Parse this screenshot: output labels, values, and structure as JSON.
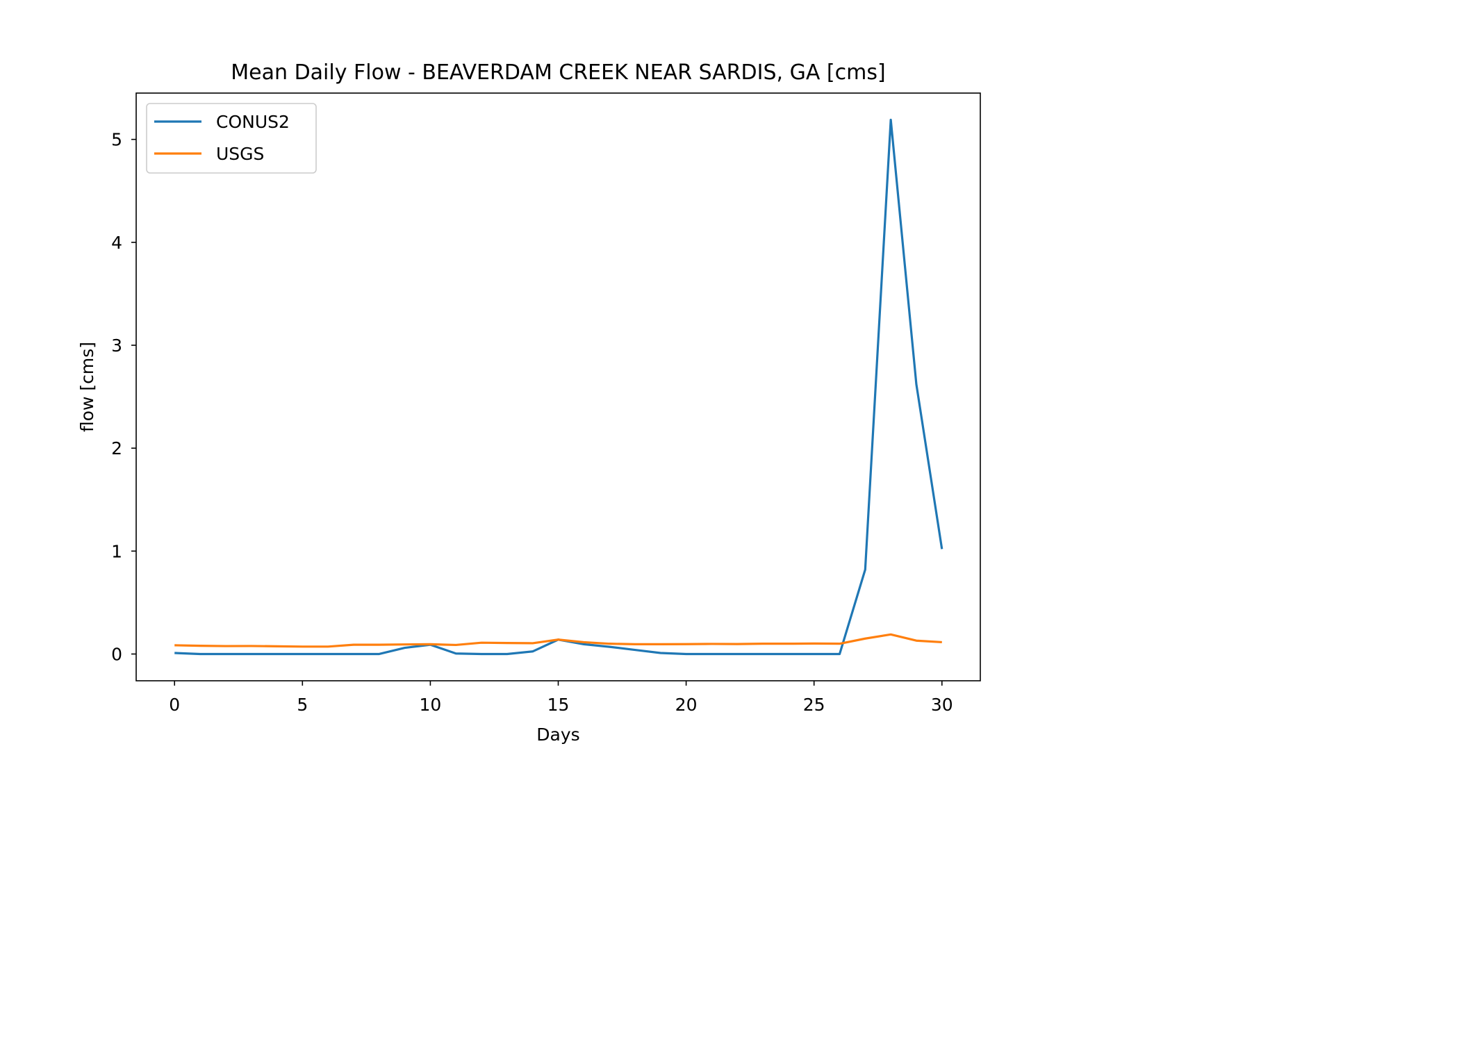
{
  "chart_data": {
    "type": "line",
    "title": "Mean Daily Flow - BEAVERDAM CREEK NEAR SARDIS, GA [cms]",
    "xlabel": "Days",
    "ylabel": "flow [cms]",
    "xlim": [
      -1.5,
      31.5
    ],
    "ylim": [
      -0.26,
      5.45
    ],
    "xticks": [
      0,
      5,
      10,
      15,
      20,
      25,
      30
    ],
    "yticks": [
      0,
      1,
      2,
      3,
      4,
      5
    ],
    "grid": false,
    "legend_position": "top-left",
    "x": [
      0,
      1,
      2,
      3,
      4,
      5,
      6,
      7,
      8,
      9,
      10,
      11,
      12,
      13,
      14,
      15,
      16,
      17,
      18,
      19,
      20,
      21,
      22,
      23,
      24,
      25,
      26,
      27,
      28,
      29,
      30
    ],
    "series": [
      {
        "name": "CONUS2",
        "color": "#1f77b4",
        "values": [
          0.01,
          0.0,
          0.0,
          0.0,
          0.0,
          0.0,
          0.0,
          0.0,
          0.0,
          0.06,
          0.09,
          0.005,
          0.0,
          0.0,
          0.025,
          0.14,
          0.095,
          0.07,
          0.04,
          0.01,
          0.0,
          0.0,
          0.0,
          0.0,
          0.0,
          0.0,
          0.0,
          0.82,
          5.19,
          2.62,
          1.02
        ]
      },
      {
        "name": "USGS",
        "color": "#ff7f0e",
        "values": [
          0.085,
          0.08,
          0.077,
          0.078,
          0.075,
          0.072,
          0.072,
          0.09,
          0.09,
          0.093,
          0.095,
          0.088,
          0.11,
          0.107,
          0.105,
          0.14,
          0.115,
          0.1,
          0.095,
          0.095,
          0.096,
          0.098,
          0.097,
          0.1,
          0.1,
          0.102,
          0.1,
          0.15,
          0.19,
          0.13,
          0.115
        ]
      }
    ]
  }
}
